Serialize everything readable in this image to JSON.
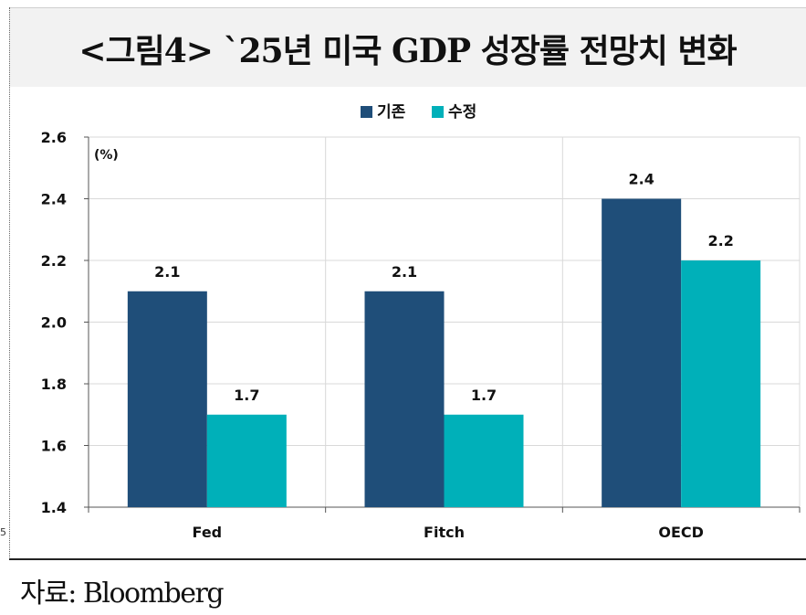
{
  "title": "<그림4> `25년 미국 GDP 성장률 전망치 변화",
  "source": "자료: Bloomberg",
  "edge_mark": "5",
  "chart_data": {
    "type": "bar",
    "categories": [
      "Fed",
      "Fitch",
      "OECD"
    ],
    "series": [
      {
        "name": "기존",
        "values": [
          2.1,
          2.1,
          2.4
        ],
        "color": "#1f4e79"
      },
      {
        "name": "수정",
        "values": [
          1.7,
          1.7,
          2.2
        ],
        "color": "#00b0b9"
      }
    ],
    "unit_label": "(%)",
    "ylim": [
      1.4,
      2.6
    ],
    "yticks": [
      1.4,
      1.6,
      1.8,
      2.0,
      2.2,
      2.4,
      2.6
    ],
    "data_labels": true,
    "legend_position": "top-center",
    "grid": true
  }
}
